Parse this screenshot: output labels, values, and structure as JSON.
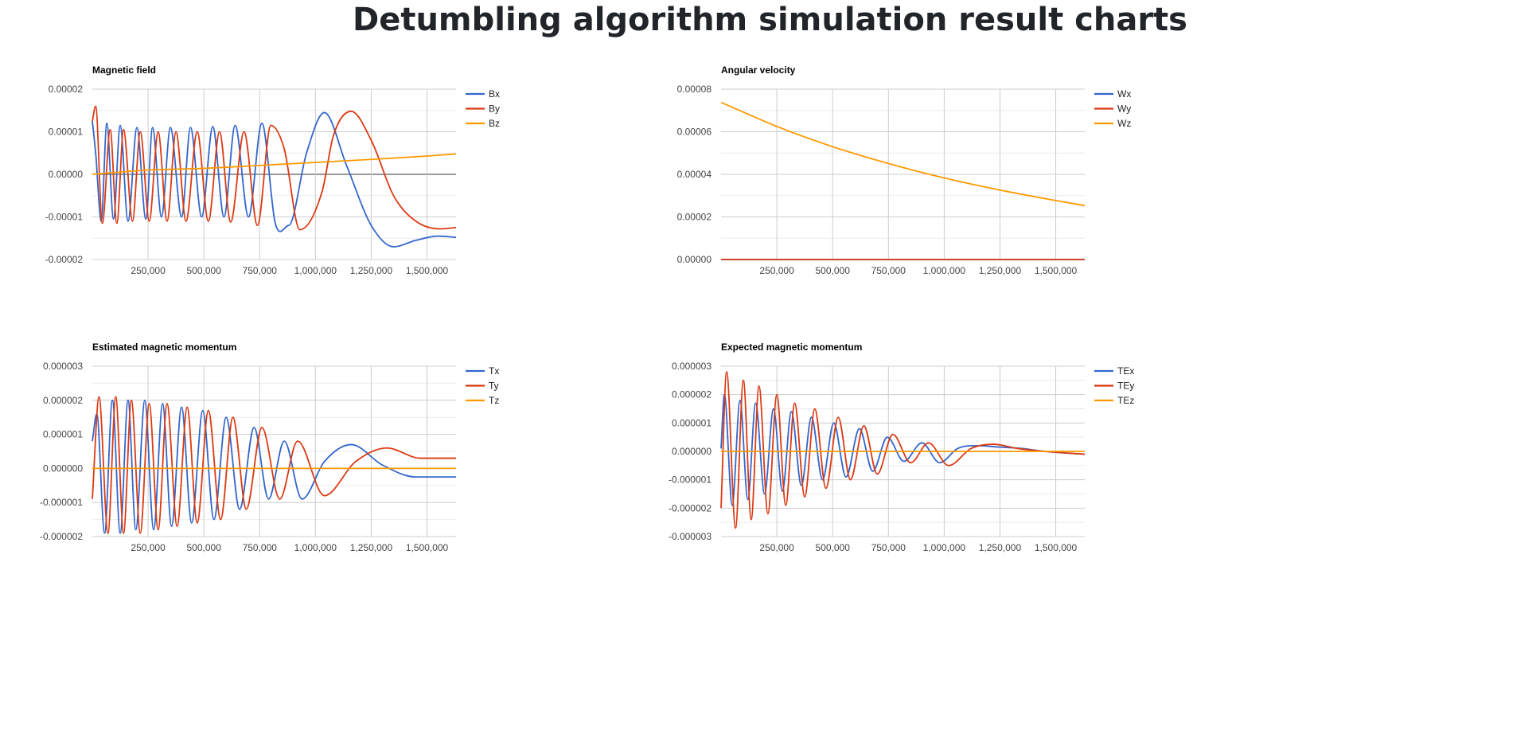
{
  "page": {
    "title": "Detumbling algorithm simulation result charts"
  },
  "colors": {
    "blue": "#3366cc",
    "red": "#dc3912",
    "orange": "#ff9900"
  },
  "chart_data": [
    {
      "type": "line",
      "title": "Magnetic field",
      "legend_position": "right",
      "grid": true,
      "xlim": [
        0,
        1630000
      ],
      "xticks": [
        250000,
        500000,
        750000,
        1000000,
        1250000,
        1500000
      ],
      "xtick_labels": [
        "250,000",
        "500,000",
        "750,000",
        "1,000,000",
        "1,250,000",
        "1,500,000"
      ],
      "ylim": [
        -2e-05,
        2e-05
      ],
      "yticks": [
        -2e-05,
        -1e-05,
        0,
        1e-05,
        2e-05
      ],
      "ytick_labels": [
        "-0.00002",
        "-0.00001",
        "0.00000",
        "0.00001",
        "0.00002"
      ],
      "series": [
        {
          "name": "Bx",
          "color": "#3366cc",
          "x": [
            0,
            15000,
            40000,
            65000,
            95000,
            125000,
            160000,
            200000,
            240000,
            270000,
            310000,
            350000,
            400000,
            440000,
            490000,
            540000,
            590000,
            640000,
            700000,
            760000,
            820000,
            880000,
            960000,
            1040000,
            1140000,
            1250000,
            1350000,
            1450000,
            1550000,
            1630000
          ],
          "y": [
            1.25e-05,
            5e-06,
            -1.1e-05,
            1.2e-05,
            -1.05e-05,
            1.15e-05,
            -1.1e-05,
            1.1e-05,
            -1.05e-05,
            1.1e-05,
            -1e-05,
            1.1e-05,
            -1e-05,
            1.1e-05,
            -1e-05,
            1.12e-05,
            -1e-05,
            1.15e-05,
            -1e-05,
            1.2e-05,
            -1.15e-05,
            -1.2e-05,
            5e-06,
            1.45e-05,
            2e-06,
            -1.2e-05,
            -1.7e-05,
            -1.55e-05,
            -1.45e-05,
            -1.48e-05
          ]
        },
        {
          "name": "By",
          "color": "#dc3912",
          "x": [
            0,
            15000,
            45000,
            80000,
            110000,
            140000,
            180000,
            215000,
            255000,
            295000,
            335000,
            375000,
            420000,
            470000,
            520000,
            570000,
            620000,
            680000,
            740000,
            800000,
            860000,
            930000,
            1030000,
            1080000,
            1160000,
            1250000,
            1350000,
            1450000,
            1560000,
            1630000
          ],
          "y": [
            1.25e-05,
            1.6e-05,
            -1.15e-05,
            1.05e-05,
            -1.15e-05,
            1.05e-05,
            -1.1e-05,
            1e-05,
            -1.1e-05,
            1e-05,
            -1.1e-05,
            1e-05,
            -1.1e-05,
            1e-05,
            -1.1e-05,
            1e-05,
            -1.12e-05,
            1e-05,
            -1.2e-05,
            1.15e-05,
            6e-06,
            -1.3e-05,
            -4e-06,
            9e-06,
            1.48e-05,
            8e-06,
            -5e-06,
            -1.1e-05,
            -1.28e-05,
            -1.25e-05
          ]
        },
        {
          "name": "Bz",
          "color": "#ff9900",
          "x": [
            0,
            250000,
            500000,
            750000,
            1000000,
            1250000,
            1500000,
            1630000
          ],
          "y": [
            0,
            1e-06,
            1.4e-06,
            2.1e-06,
            2.8e-06,
            3.5e-06,
            4.3e-06,
            4.8e-06
          ]
        }
      ]
    },
    {
      "type": "line",
      "title": "Angular velocity",
      "legend_position": "right",
      "grid": true,
      "xlim": [
        0,
        1630000
      ],
      "xticks": [
        250000,
        500000,
        750000,
        1000000,
        1250000,
        1500000
      ],
      "xtick_labels": [
        "250,000",
        "500,000",
        "750,000",
        "1,000,000",
        "1,250,000",
        "1,500,000"
      ],
      "ylim": [
        0,
        8e-05
      ],
      "yticks": [
        0,
        2e-05,
        4e-05,
        6e-05,
        8e-05
      ],
      "ytick_labels": [
        "0.00000",
        "0.00002",
        "0.00004",
        "0.00006",
        "0.00008"
      ],
      "series": [
        {
          "name": "Wx",
          "color": "#3366cc",
          "x": [
            0,
            1630000
          ],
          "y": [
            0,
            0
          ]
        },
        {
          "name": "Wy",
          "color": "#dc3912",
          "x": [
            0,
            1630000
          ],
          "y": [
            0,
            0
          ]
        },
        {
          "name": "Wz",
          "color": "#ff9900",
          "x": [
            0,
            250000,
            500000,
            750000,
            1000000,
            1250000,
            1500000,
            1630000
          ],
          "y": [
            7.38e-05,
            6.25e-05,
            5.3e-05,
            4.51e-05,
            3.83e-05,
            3.26e-05,
            2.77e-05,
            2.53e-05
          ]
        }
      ]
    },
    {
      "type": "line",
      "title": "Estimated magnetic momentum",
      "legend_position": "right",
      "grid": true,
      "xlim": [
        0,
        1630000
      ],
      "xticks": [
        250000,
        500000,
        750000,
        1000000,
        1250000,
        1500000
      ],
      "xtick_labels": [
        "250,000",
        "500,000",
        "750,000",
        "1,000,000",
        "1,250,000",
        "1,500,000"
      ],
      "ylim": [
        -2e-06,
        3e-06
      ],
      "yticks": [
        -2e-06,
        -1e-06,
        0,
        1e-06,
        2e-06,
        3e-06
      ],
      "ytick_labels": [
        "-0.000002",
        "-0.000001",
        "0.000000",
        "0.000001",
        "0.000002",
        "0.000003"
      ],
      "series": [
        {
          "name": "Tx",
          "color": "#3366cc",
          "x": [
            0,
            20000,
            55000,
            90000,
            125000,
            160000,
            195000,
            235000,
            275000,
            315000,
            355000,
            400000,
            445000,
            495000,
            545000,
            600000,
            660000,
            725000,
            790000,
            860000,
            940000,
            1040000,
            1160000,
            1300000,
            1450000,
            1630000
          ],
          "y": [
            8e-07,
            1.6e-06,
            -1.9e-06,
            2e-06,
            -1.9e-06,
            2e-06,
            -1.8e-06,
            2e-06,
            -1.8e-06,
            1.9e-06,
            -1.7e-06,
            1.8e-06,
            -1.6e-06,
            1.7e-06,
            -1.5e-06,
            1.5e-06,
            -1.2e-06,
            1.2e-06,
            -9e-07,
            8e-07,
            -9e-07,
            2e-07,
            7e-07,
            1e-07,
            -2.5e-07,
            -2.5e-07
          ]
        },
        {
          "name": "Ty",
          "color": "#dc3912",
          "x": [
            0,
            30000,
            70000,
            105000,
            140000,
            175000,
            215000,
            255000,
            295000,
            335000,
            380000,
            425000,
            470000,
            520000,
            575000,
            630000,
            690000,
            760000,
            840000,
            920000,
            1040000,
            1180000,
            1320000,
            1470000,
            1630000
          ],
          "y": [
            -9e-07,
            2.1e-06,
            -1.9e-06,
            2.1e-06,
            -1.9e-06,
            2e-06,
            -1.9e-06,
            1.9e-06,
            -1.8e-06,
            1.9e-06,
            -1.7e-06,
            1.8e-06,
            -1.6e-06,
            1.7e-06,
            -1.5e-06,
            1.5e-06,
            -1.2e-06,
            1.2e-06,
            -9e-07,
            8e-07,
            -8e-07,
            2e-07,
            6e-07,
            3e-07,
            3e-07
          ]
        },
        {
          "name": "Tz",
          "color": "#ff9900",
          "x": [
            0,
            1630000
          ],
          "y": [
            0,
            0
          ]
        }
      ]
    },
    {
      "type": "line",
      "title": "Expected magnetic momentum",
      "legend_position": "right",
      "grid": true,
      "xlim": [
        0,
        1630000
      ],
      "xticks": [
        250000,
        500000,
        750000,
        1000000,
        1250000,
        1500000
      ],
      "xtick_labels": [
        "250,000",
        "500,000",
        "750,000",
        "1,000,000",
        "1,250,000",
        "1,500,000"
      ],
      "ylim": [
        -3e-06,
        3e-06
      ],
      "yticks": [
        -3e-06,
        -2e-06,
        -1e-06,
        0,
        1e-06,
        2e-06,
        3e-06
      ],
      "ytick_labels": [
        "-0.000003",
        "-0.000002",
        "-0.000001",
        "0.000000",
        "0.000001",
        "0.000002",
        "0.000003"
      ],
      "series": [
        {
          "name": "TEx",
          "color": "#3366cc",
          "x": [
            0,
            15000,
            50000,
            85000,
            120000,
            155000,
            195000,
            235000,
            275000,
            315000,
            360000,
            405000,
            455000,
            505000,
            560000,
            620000,
            680000,
            745000,
            820000,
            900000,
            980000,
            1060000,
            1150000,
            1250000,
            1350000,
            1450000,
            1630000
          ],
          "y": [
            1e-07,
            2e-06,
            -1.9e-06,
            1.8e-06,
            -1.7e-06,
            1.7e-06,
            -1.5e-06,
            1.5e-06,
            -1.4e-06,
            1.4e-06,
            -1.2e-06,
            1.2e-06,
            -1e-06,
            1e-06,
            -9e-07,
            8e-07,
            -7e-07,
            5e-07,
            -3.5e-07,
            3e-07,
            -4e-07,
            1e-07,
            2e-07,
            1.5e-07,
            1e-07,
            0.0,
            -1e-07
          ]
        },
        {
          "name": "TEy",
          "color": "#dc3912",
          "x": [
            0,
            25000,
            65000,
            100000,
            135000,
            170000,
            210000,
            250000,
            290000,
            330000,
            375000,
            420000,
            470000,
            525000,
            580000,
            640000,
            700000,
            770000,
            850000,
            930000,
            1020000,
            1120000,
            1220000,
            1330000,
            1450000,
            1630000
          ],
          "y": [
            -2e-06,
            2.8e-06,
            -2.7e-06,
            2.5e-06,
            -2.4e-06,
            2.3e-06,
            -2.2e-06,
            2e-06,
            -1.9e-06,
            1.7e-06,
            -1.6e-06,
            1.5e-06,
            -1.3e-06,
            1.2e-06,
            -1e-06,
            9e-07,
            -8e-07,
            6e-07,
            -4e-07,
            3e-07,
            -5e-07,
            1e-07,
            2.5e-07,
            1e-07,
            0.0,
            -1e-07
          ]
        },
        {
          "name": "TEz",
          "color": "#ff9900",
          "x": [
            0,
            1630000
          ],
          "y": [
            0,
            0
          ]
        }
      ]
    }
  ]
}
